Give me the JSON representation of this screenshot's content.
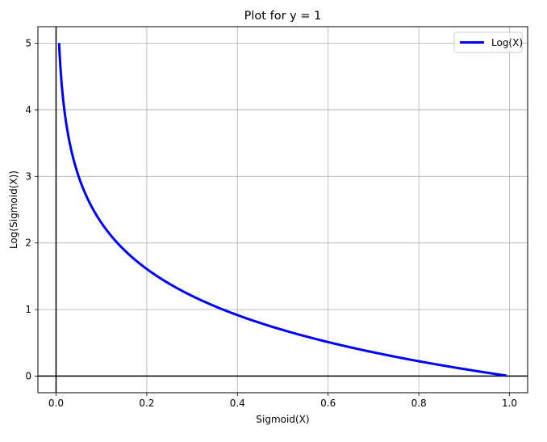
{
  "chart_data": {
    "type": "line",
    "title": "Plot for y = 1",
    "xlabel": "Sigmoid(X)",
    "ylabel": "Log(Sigmoid(X))",
    "xlim": [
      -0.04,
      1.04
    ],
    "ylim": [
      -0.25,
      5.25
    ],
    "xticks": [
      0.0,
      0.2,
      0.4,
      0.6,
      0.8,
      1.0
    ],
    "xtick_labels": [
      "0.0",
      "0.2",
      "0.4",
      "0.6",
      "0.8",
      "1.0"
    ],
    "yticks": [
      0,
      1,
      2,
      3,
      4,
      5
    ],
    "ytick_labels": [
      "0",
      "1",
      "2",
      "3",
      "4",
      "5"
    ],
    "grid": true,
    "legend": {
      "placement": "top-right",
      "entries": [
        "Log(X)"
      ]
    },
    "reference_lines": {
      "x": 0,
      "y": 0
    },
    "series": [
      {
        "name": "Log(X)",
        "color": "#0000ff",
        "function": "-ln(x)",
        "x_range": [
          0.0067,
          0.9933
        ],
        "points": [
          [
            0.0067,
            5.0
          ],
          [
            0.01,
            4.61
          ],
          [
            0.015,
            4.2
          ],
          [
            0.02,
            3.91
          ],
          [
            0.03,
            3.51
          ],
          [
            0.04,
            3.22
          ],
          [
            0.05,
            3.0
          ],
          [
            0.07,
            2.66
          ],
          [
            0.1,
            2.3
          ],
          [
            0.15,
            1.9
          ],
          [
            0.2,
            1.61
          ],
          [
            0.3,
            1.2
          ],
          [
            0.4,
            0.92
          ],
          [
            0.5,
            0.69
          ],
          [
            0.6,
            0.51
          ],
          [
            0.7,
            0.36
          ],
          [
            0.8,
            0.22
          ],
          [
            0.9,
            0.11
          ],
          [
            0.9933,
            0.0067
          ]
        ]
      }
    ]
  }
}
